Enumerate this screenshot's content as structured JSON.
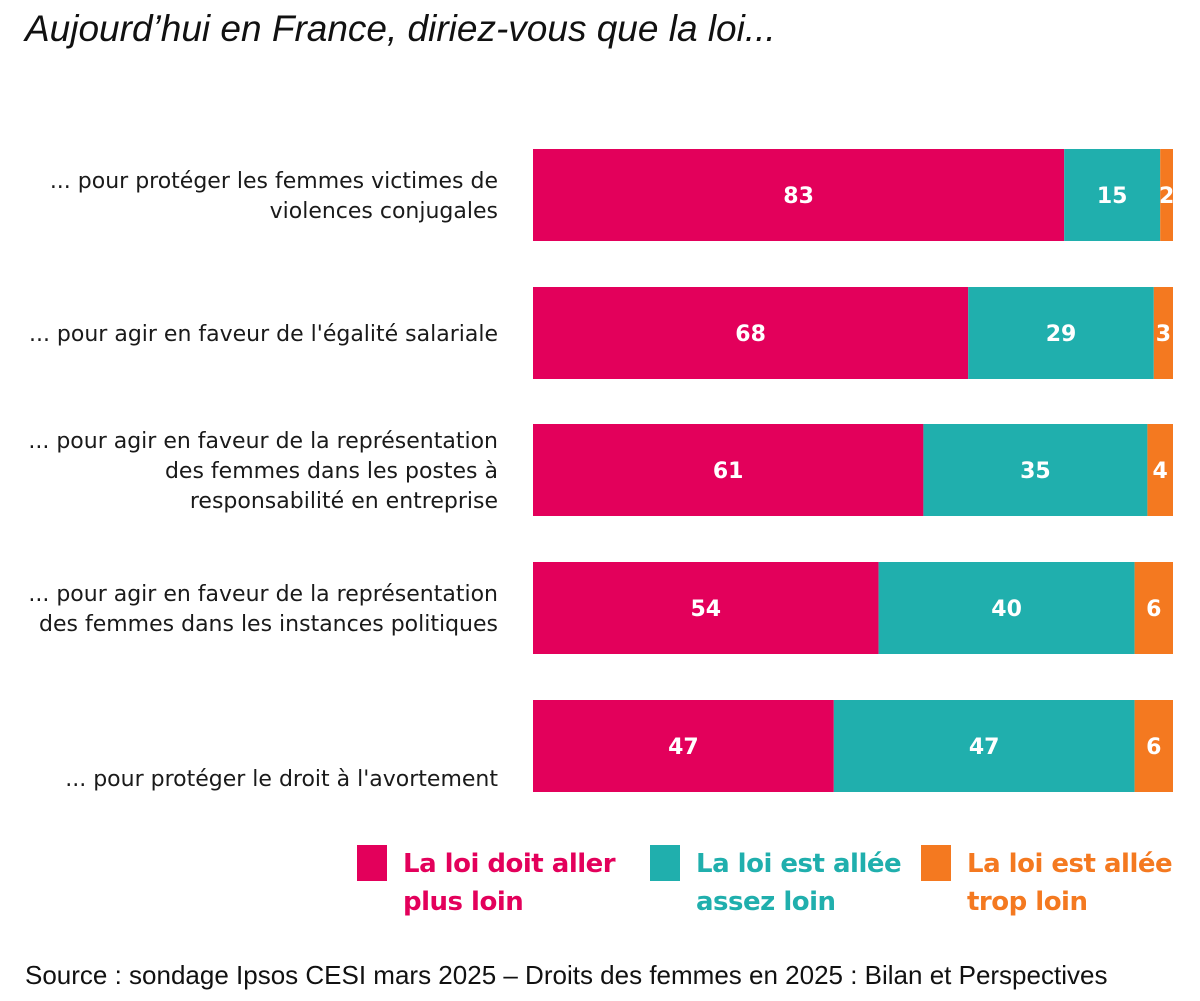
{
  "title": "Aujourd’hui en France, diriez-vous que la loi...",
  "source": "Source : sondage Ipsos CESI mars 2025 – Droits des femmes en 2025 : Bilan et Perspectives",
  "colors": {
    "plus_loin": "#E3005B",
    "assez_loin": "#20AFAD",
    "trop_loin": "#F47920"
  },
  "legend": [
    {
      "line1": "La loi doit aller",
      "line2": "plus loin",
      "color": "#E3005B"
    },
    {
      "line1": "La loi est allée",
      "line2": "assez loin",
      "color": "#20AFAD"
    },
    {
      "line1": "La loi est allée",
      "line2": "trop loin",
      "color": "#F47920"
    }
  ],
  "chart_data": {
    "type": "bar",
    "orientation": "horizontal",
    "stacked": true,
    "categories": [
      [
        "... pour protéger les femmes victimes de",
        "violences conjugales"
      ],
      [
        "... pour agir en faveur de l'égalité salariale"
      ],
      [
        "... pour agir en faveur de la représentation",
        "des femmes dans les postes à",
        "responsabilité en entreprise"
      ],
      [
        "... pour agir en faveur de la représentation",
        "des femmes dans les instances politiques"
      ],
      [
        "... pour protéger le droit à l'avortement"
      ]
    ],
    "series": [
      {
        "name": "La loi doit aller plus loin",
        "color": "#E3005B",
        "values": [
          83,
          68,
          61,
          54,
          47
        ]
      },
      {
        "name": "La loi est allée assez loin",
        "color": "#20AFAD",
        "values": [
          15,
          29,
          35,
          40,
          47
        ]
      },
      {
        "name": "La loi est allée trop loin",
        "color": "#F47920",
        "values": [
          2,
          3,
          4,
          6,
          6
        ]
      }
    ],
    "xlim": [
      0,
      100
    ],
    "grid": false,
    "legend_position": "bottom"
  }
}
